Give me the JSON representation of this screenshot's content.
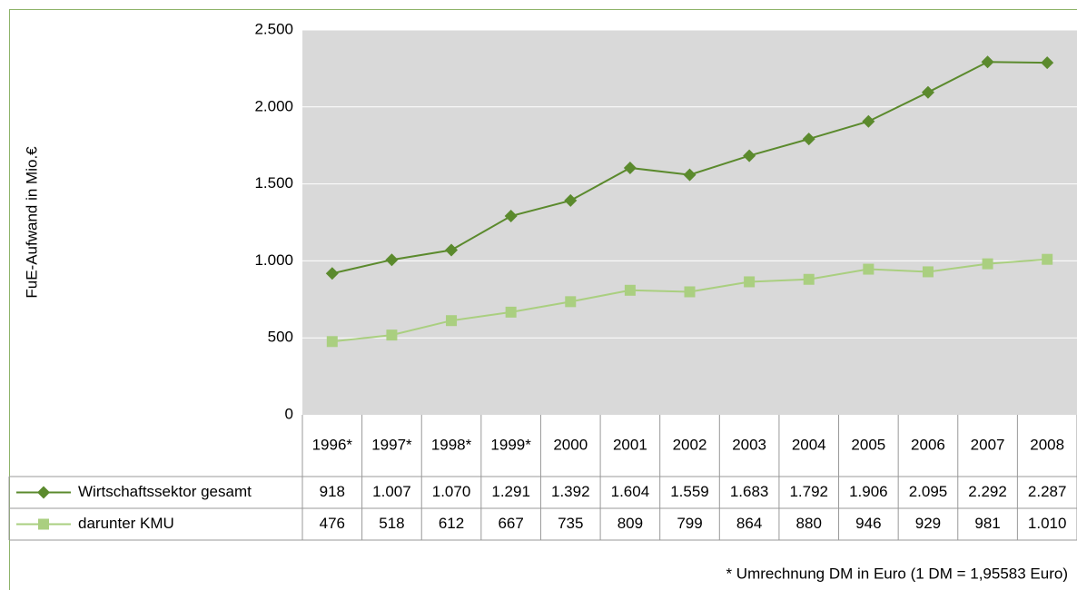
{
  "chart_data": {
    "type": "line",
    "y_axis_label": "FuE-Aufwand in Mio.€",
    "categories": [
      "1996*",
      "1997*",
      "1998*",
      "1999*",
      "2000",
      "2001",
      "2002",
      "2003",
      "2004",
      "2005",
      "2006",
      "2007",
      "2008"
    ],
    "series": [
      {
        "name": "Wirtschaftssektor gesamt",
        "color": "#5b8a2d",
        "marker": "diamond",
        "values": [
          918,
          1007,
          1070,
          1291,
          1392,
          1604,
          1559,
          1683,
          1792,
          1906,
          2095,
          2292,
          2287
        ],
        "value_labels": [
          "918",
          "1.007",
          "1.070",
          "1.291",
          "1.392",
          "1.604",
          "1.559",
          "1.683",
          "1.792",
          "1.906",
          "2.095",
          "2.292",
          "2.287"
        ]
      },
      {
        "name": "darunter KMU",
        "color": "#aacf80",
        "marker": "square",
        "values": [
          476,
          518,
          612,
          667,
          735,
          809,
          799,
          864,
          880,
          946,
          929,
          981,
          1010
        ],
        "value_labels": [
          "476",
          "518",
          "612",
          "667",
          "735",
          "809",
          "799",
          "864",
          "880",
          "946",
          "929",
          "981",
          "1.010"
        ]
      }
    ],
    "ylim": [
      0,
      2500
    ],
    "yticks": [
      0,
      {
        "value": 500,
        "label": "500"
      },
      {
        "value": 1000,
        "label": "1.000"
      },
      {
        "value": 1500,
        "label": "1.500"
      },
      {
        "value": 2000,
        "label": "2.000"
      },
      {
        "value": 2500,
        "label": "2.500"
      }
    ],
    "grid": true,
    "footnote": "* Umrechnung DM in Euro (1 DM = 1,95583 Euro)"
  }
}
